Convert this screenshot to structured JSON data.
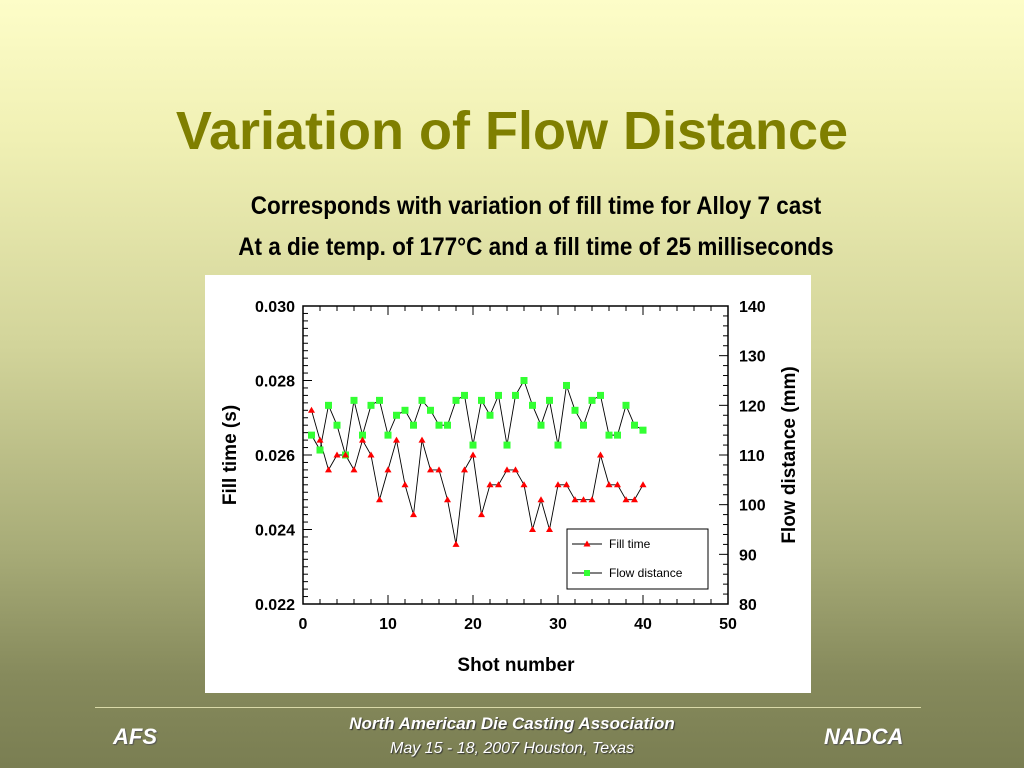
{
  "slide": {
    "title": "Variation of Flow Distance",
    "subtitle_line1": "Corresponds with variation of fill time for Alloy 7 cast",
    "subtitle_line2": "At a die temp. of 177°C and a fill time of 25 milliseconds"
  },
  "footer": {
    "left": "AFS",
    "right": "NADCA",
    "center_line1": "North American Die Casting Association",
    "center_line2": "May 15 - 18, 2007  Houston, Texas"
  },
  "colors": {
    "title": "#7f7f00",
    "fill_time_series": "#ff0000",
    "flow_distance_series": "#33ff33",
    "series_line": "#000000"
  },
  "chart_data": {
    "type": "line",
    "xlabel": "Shot number",
    "ylabel": "Fill time (s)",
    "y2label": "Flow distance (mm)",
    "xlim": [
      0,
      50
    ],
    "ylim": [
      0.022,
      0.03
    ],
    "y2lim": [
      80,
      140
    ],
    "x_ticks": [
      "0",
      "10",
      "20",
      "30",
      "40",
      "50"
    ],
    "y_ticks": [
      "0.022",
      "0.024",
      "0.026",
      "0.028",
      "0.030"
    ],
    "y2_ticks": [
      "80",
      "90",
      "100",
      "110",
      "120",
      "130",
      "140"
    ],
    "grid": false,
    "legend_position": "bottom-right",
    "x": [
      1,
      2,
      3,
      4,
      5,
      6,
      7,
      8,
      9,
      10,
      11,
      12,
      13,
      14,
      15,
      16,
      17,
      18,
      19,
      20,
      21,
      22,
      23,
      24,
      25,
      26,
      27,
      28,
      29,
      30,
      31,
      32,
      33,
      34,
      35,
      36,
      37,
      38,
      39,
      40
    ],
    "series": [
      {
        "name": "Fill time",
        "axis": "left",
        "marker": "triangle",
        "values": [
          0.0272,
          0.0264,
          0.0256,
          0.026,
          0.026,
          0.0256,
          0.0264,
          0.026,
          0.0248,
          0.0256,
          0.0264,
          0.0252,
          0.0244,
          0.0264,
          0.0256,
          0.0256,
          0.0248,
          0.0236,
          0.0256,
          0.026,
          0.0244,
          0.0252,
          0.0252,
          0.0256,
          0.0256,
          0.0252,
          0.024,
          0.0248,
          0.024,
          0.0252,
          0.0252,
          0.0248,
          0.0248,
          0.0248,
          0.026,
          0.0252,
          0.0252,
          0.0248,
          0.0248,
          0.0252
        ]
      },
      {
        "name": "Flow distance",
        "axis": "right",
        "marker": "square",
        "values": [
          114,
          111,
          120,
          116,
          110,
          121,
          114,
          120,
          121,
          114,
          118,
          119,
          116,
          121,
          119,
          116,
          116,
          121,
          122,
          112,
          121,
          118,
          122,
          112,
          122,
          125,
          120,
          116,
          121,
          112,
          124,
          119,
          116,
          121,
          122,
          114,
          114,
          120,
          116,
          115
        ]
      }
    ]
  }
}
